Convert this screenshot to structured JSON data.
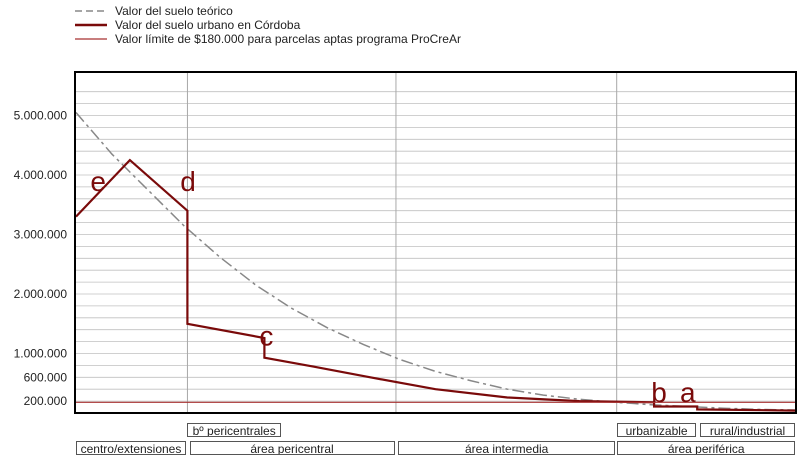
{
  "colors": {
    "theoretical": "#888888",
    "urban": "#7a0a0a",
    "limit": "#a83232",
    "grid": "#c0c0c0",
    "frame": "#000000"
  },
  "legend": [
    {
      "label": "Valor del suelo teórico",
      "style": "dashed"
    },
    {
      "label": "Valor del suelo urbano en Córdoba",
      "style": "solid-thick"
    },
    {
      "label": "Valor límite de $180.000 para parcelas aptas programa ProCreAr",
      "style": "solid-thin"
    }
  ],
  "chart_data": {
    "type": "line",
    "title": "",
    "xlabel": "",
    "ylabel": "",
    "ylim": [
      0,
      5500000
    ],
    "xlim": [
      0,
      100
    ],
    "y_ticks": [
      {
        "value": 200000,
        "label": "200.000"
      },
      {
        "value": 600000,
        "label": "600.000"
      },
      {
        "value": 1000000,
        "label": "1.000.000"
      },
      {
        "value": 2000000,
        "label": "2.000.000"
      },
      {
        "value": 3000000,
        "label": "3.000.000"
      },
      {
        "value": 4000000,
        "label": "4.000.000"
      },
      {
        "value": 5000000,
        "label": "5.000.000"
      }
    ],
    "grid": true,
    "legend_position": "top-left",
    "series": [
      {
        "name": "Valor del suelo teórico",
        "values": [
          [
            0,
            5050000
          ],
          [
            5,
            4350000
          ],
          [
            10,
            3750000
          ],
          [
            15,
            3150000
          ],
          [
            20,
            2620000
          ],
          [
            25,
            2150000
          ],
          [
            30,
            1760000
          ],
          [
            35,
            1430000
          ],
          [
            40,
            1150000
          ],
          [
            45,
            900000
          ],
          [
            50,
            700000
          ],
          [
            55,
            540000
          ],
          [
            60,
            400000
          ],
          [
            65,
            300000
          ],
          [
            70,
            230000
          ],
          [
            75,
            180000
          ],
          [
            80,
            140000
          ],
          [
            85,
            110000
          ],
          [
            90,
            80000
          ],
          [
            95,
            60000
          ],
          [
            100,
            50000
          ]
        ]
      },
      {
        "name": "Valor del suelo urbano en Córdoba",
        "values": [
          [
            0,
            3300000
          ],
          [
            7.5,
            4250000
          ],
          [
            15.5,
            3400000
          ],
          [
            15.5,
            1500000
          ],
          [
            26.2,
            1260000
          ],
          [
            26.2,
            930000
          ],
          [
            33,
            780000
          ],
          [
            40,
            620000
          ],
          [
            50,
            400000
          ],
          [
            60,
            260000
          ],
          [
            70,
            200000
          ],
          [
            80.4,
            180000
          ],
          [
            80.4,
            110000
          ],
          [
            86.4,
            110000
          ],
          [
            86.4,
            60000
          ],
          [
            100,
            40000
          ]
        ]
      },
      {
        "name": "Valor límite de $180.000 para parcelas aptas programa ProCreAr",
        "values": [
          [
            0,
            180000
          ],
          [
            100,
            180000
          ]
        ]
      }
    ],
    "annotations": [
      {
        "text": "e",
        "x": 2.0,
        "y": 3900000
      },
      {
        "text": "d",
        "x": 14.5,
        "y": 3900000
      },
      {
        "text": "c",
        "x": 25.5,
        "y": 1300000
      },
      {
        "text": "b",
        "x": 80.0,
        "y": 350000
      },
      {
        "text": "a",
        "x": 84.0,
        "y": 350000
      }
    ],
    "zones_upper": [
      {
        "label": "bº pericentrales",
        "from": 15.5,
        "to": 28.5
      },
      {
        "label": "urbanizable",
        "from": 75.3,
        "to": 86.2
      },
      {
        "label": "rural/industrial",
        "from": 86.8,
        "to": 100
      }
    ],
    "zones_lower": [
      {
        "label": "centro/extensiones",
        "from": 0,
        "to": 15.3
      },
      {
        "label": "área pericentral",
        "from": 15.8,
        "to": 44.3
      },
      {
        "label": "área intermedia",
        "from": 44.8,
        "to": 75.0
      },
      {
        "label": "área periférica",
        "from": 75.3,
        "to": 100
      }
    ],
    "vertical_dividers": [
      15.5,
      44.5,
      75.2
    ]
  }
}
